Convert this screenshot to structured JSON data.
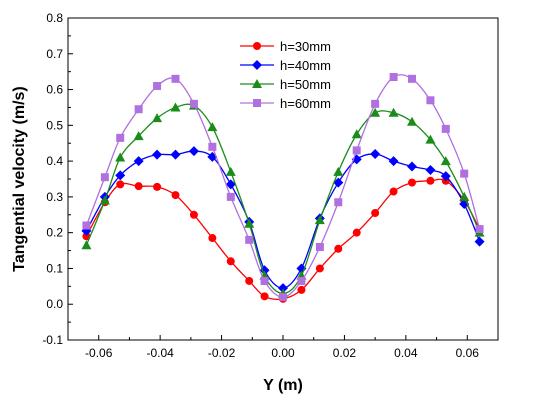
{
  "chart_data": {
    "type": "line",
    "xlabel": "Y (m)",
    "ylabel": "Tangential velocity (m/s)",
    "xlim": [
      -0.07,
      0.07
    ],
    "ylim": [
      -0.1,
      0.8
    ],
    "xticks": [
      -0.06,
      -0.04,
      -0.02,
      0.0,
      0.02,
      0.04,
      0.06
    ],
    "xtick_labels": [
      "-0.06",
      "-0.04",
      "-0.02",
      "0.00",
      "0.02",
      "0.04",
      "0.06"
    ],
    "yticks": [
      -0.1,
      0.0,
      0.1,
      0.2,
      0.3,
      0.4,
      0.5,
      0.6,
      0.7,
      0.8
    ],
    "ytick_labels": [
      "-0.1",
      "0.0",
      "0.1",
      "0.2",
      "0.3",
      "0.4",
      "0.5",
      "0.6",
      "0.7",
      "0.8"
    ],
    "grid": false,
    "legend_position": "top-center",
    "series": [
      {
        "name": "h=30mm",
        "color": "#ff0000",
        "marker": "circle",
        "points": [
          [
            -0.064,
            0.19
          ],
          [
            -0.058,
            0.285
          ],
          [
            -0.053,
            0.335
          ],
          [
            -0.047,
            0.33
          ],
          [
            -0.041,
            0.328
          ],
          [
            -0.035,
            0.305
          ],
          [
            -0.029,
            0.25
          ],
          [
            -0.023,
            0.185
          ],
          [
            -0.017,
            0.12
          ],
          [
            -0.011,
            0.065
          ],
          [
            -0.006,
            0.022
          ],
          [
            0.0,
            0.015
          ],
          [
            0.006,
            0.04
          ],
          [
            0.012,
            0.1
          ],
          [
            0.018,
            0.155
          ],
          [
            0.024,
            0.2
          ],
          [
            0.03,
            0.255
          ],
          [
            0.036,
            0.315
          ],
          [
            0.042,
            0.34
          ],
          [
            0.048,
            0.345
          ],
          [
            0.053,
            0.345
          ],
          [
            0.059,
            0.29
          ],
          [
            0.064,
            0.21
          ]
        ]
      },
      {
        "name": "h=40mm",
        "color": "#0000ff",
        "marker": "diamond",
        "points": [
          [
            -0.064,
            0.205
          ],
          [
            -0.058,
            0.3
          ],
          [
            -0.053,
            0.36
          ],
          [
            -0.047,
            0.4
          ],
          [
            -0.041,
            0.418
          ],
          [
            -0.035,
            0.418
          ],
          [
            -0.029,
            0.428
          ],
          [
            -0.023,
            0.412
          ],
          [
            -0.017,
            0.335
          ],
          [
            -0.011,
            0.23
          ],
          [
            -0.006,
            0.095
          ],
          [
            0.0,
            0.045
          ],
          [
            0.006,
            0.1
          ],
          [
            0.012,
            0.24
          ],
          [
            0.018,
            0.34
          ],
          [
            0.024,
            0.405
          ],
          [
            0.03,
            0.42
          ],
          [
            0.036,
            0.4
          ],
          [
            0.042,
            0.385
          ],
          [
            0.048,
            0.375
          ],
          [
            0.053,
            0.358
          ],
          [
            0.059,
            0.28
          ],
          [
            0.064,
            0.175
          ]
        ]
      },
      {
        "name": "h=50mm",
        "color": "#1a8c1a",
        "marker": "triangle",
        "points": [
          [
            -0.064,
            0.165
          ],
          [
            -0.058,
            0.29
          ],
          [
            -0.053,
            0.41
          ],
          [
            -0.047,
            0.47
          ],
          [
            -0.041,
            0.52
          ],
          [
            -0.035,
            0.55
          ],
          [
            -0.029,
            0.555
          ],
          [
            -0.023,
            0.495
          ],
          [
            -0.017,
            0.37
          ],
          [
            -0.011,
            0.225
          ],
          [
            -0.006,
            0.08
          ],
          [
            0.0,
            0.03
          ],
          [
            0.006,
            0.08
          ],
          [
            0.012,
            0.235
          ],
          [
            0.018,
            0.37
          ],
          [
            0.024,
            0.475
          ],
          [
            0.03,
            0.535
          ],
          [
            0.036,
            0.535
          ],
          [
            0.042,
            0.51
          ],
          [
            0.048,
            0.46
          ],
          [
            0.053,
            0.4
          ],
          [
            0.059,
            0.3
          ],
          [
            0.064,
            0.2
          ]
        ]
      },
      {
        "name": "h=60mm",
        "color": "#b070e0",
        "marker": "square",
        "points": [
          [
            -0.064,
            0.22
          ],
          [
            -0.058,
            0.355
          ],
          [
            -0.053,
            0.465
          ],
          [
            -0.047,
            0.545
          ],
          [
            -0.041,
            0.61
          ],
          [
            -0.035,
            0.63
          ],
          [
            -0.029,
            0.56
          ],
          [
            -0.023,
            0.44
          ],
          [
            -0.017,
            0.3
          ],
          [
            -0.011,
            0.18
          ],
          [
            -0.006,
            0.065
          ],
          [
            0.0,
            0.02
          ],
          [
            0.006,
            0.065
          ],
          [
            0.012,
            0.16
          ],
          [
            0.018,
            0.285
          ],
          [
            0.024,
            0.43
          ],
          [
            0.03,
            0.56
          ],
          [
            0.036,
            0.635
          ],
          [
            0.042,
            0.63
          ],
          [
            0.048,
            0.57
          ],
          [
            0.053,
            0.49
          ],
          [
            0.059,
            0.365
          ],
          [
            0.064,
            0.21
          ]
        ]
      }
    ]
  }
}
